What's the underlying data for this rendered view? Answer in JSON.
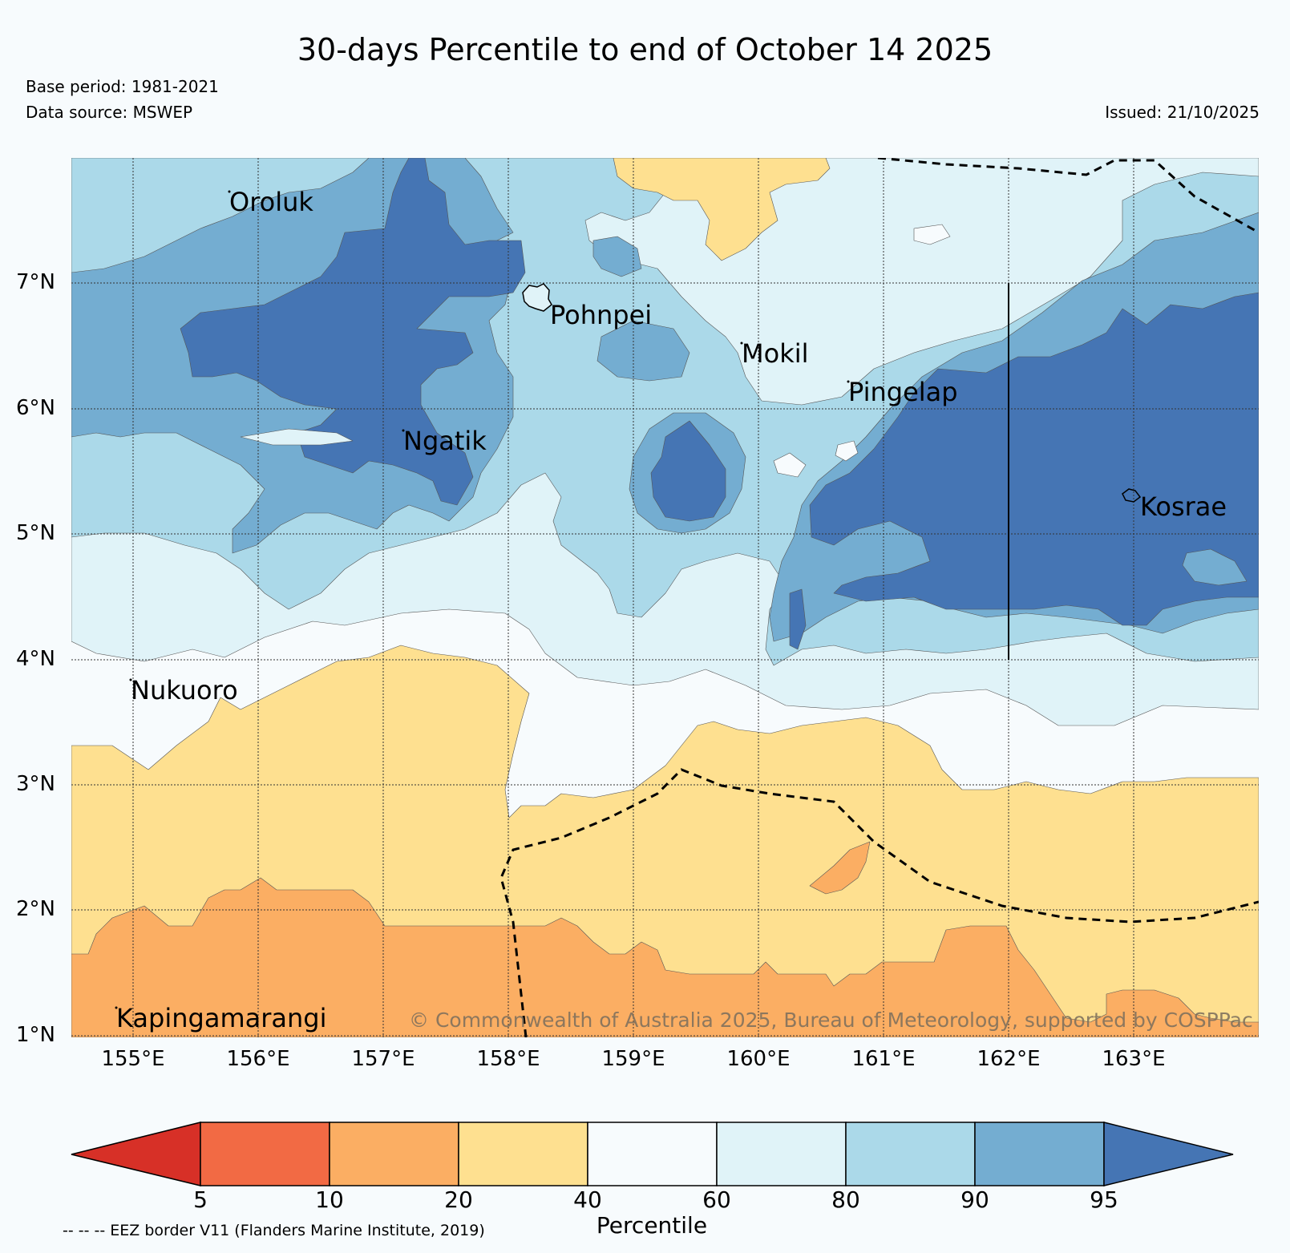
{
  "title": "30-days Percentile to end of October 14 2025",
  "base_period": "Base period: 1981-2021",
  "data_source": "Data source: MSWEP",
  "issued": "Issued: 21/10/2025",
  "attribution": "© Commonwealth of Australia 2025, Bureau of Meteorology, supported by COSPPac",
  "map": {
    "lat_ticks": [
      "7°N",
      "6°N",
      "5°N",
      "4°N",
      "3°N",
      "2°N",
      "1°N"
    ],
    "lon_ticks": [
      "155°E",
      "156°E",
      "157°E",
      "158°E",
      "159°E",
      "160°E",
      "161°E",
      "162°E",
      "163°E"
    ],
    "places": [
      "Oroluk",
      "Pohnpei",
      "Mokil",
      "Pingelap",
      "Ngatik",
      "Kosrae",
      "Nukuoro",
      "Kapingamarangi"
    ],
    "colors": {
      "p5_10": "#f26a44",
      "p10_20": "#fbae63",
      "p20_40": "#fee090",
      "p40_60": "#f7fbfd",
      "p60_80": "#e0f3f8",
      "p80_90": "#abd9e9",
      "p90_95": "#74add1",
      "p95_plus": "#4575b4",
      "below5": "#d73027"
    }
  },
  "colorbar": {
    "ticks": [
      "5",
      "10",
      "20",
      "40",
      "60",
      "80",
      "90",
      "95"
    ],
    "label": "Percentile",
    "colors": [
      "#d73027",
      "#f26a44",
      "#fbae63",
      "#fee090",
      "#f7fbfd",
      "#e0f3f8",
      "#abd9e9",
      "#74add1",
      "#4575b4"
    ]
  },
  "legend_note": "-- -- -- EEZ border V11 (Flanders Marine Institute, 2019)"
}
